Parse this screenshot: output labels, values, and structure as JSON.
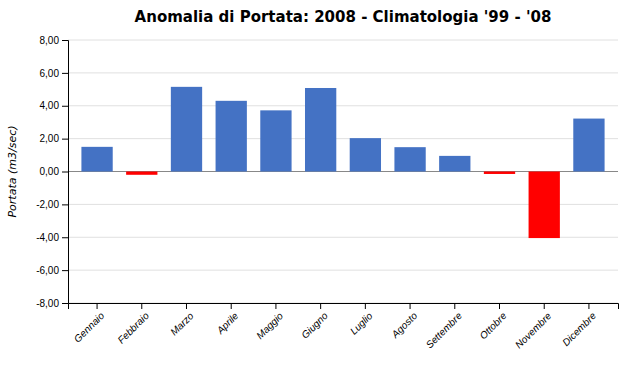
{
  "chart_data": {
    "type": "bar",
    "title": "Anomalia di Portata: 2008 - Climatologia  '99 - '08",
    "ylabel": "Portata (m3/sec)",
    "categories": [
      "Gennaio",
      "Febbraio",
      "Marzo",
      "Aprile",
      "Maggio",
      "Giugno",
      "Luglio",
      "Agosto",
      "Settembre",
      "Ottobre",
      "Novembre",
      "Dicembre"
    ],
    "values": [
      1.5,
      -0.2,
      5.15,
      4.3,
      3.72,
      5.08,
      2.03,
      1.48,
      0.95,
      -0.15,
      -4.05,
      3.22
    ],
    "colors": [
      "#4472C4",
      "#FF0000",
      "#4472C4",
      "#4472C4",
      "#4472C4",
      "#4472C4",
      "#4472C4",
      "#4472C4",
      "#4472C4",
      "#FF0000",
      "#FF0000",
      "#4472C4"
    ],
    "ylim": [
      -8.0,
      8.0
    ],
    "yticks": [
      {
        "value": -8.0,
        "label": "-8,00"
      },
      {
        "value": -6.0,
        "label": "-6,00"
      },
      {
        "value": -4.0,
        "label": "-4,00"
      },
      {
        "value": -2.0,
        "label": "-2,00"
      },
      {
        "value": 0.0,
        "label": "0,00"
      },
      {
        "value": 2.0,
        "label": "2,00"
      },
      {
        "value": 4.0,
        "label": "4,00"
      },
      {
        "value": 6.0,
        "label": "6,00"
      },
      {
        "value": 8.0,
        "label": "8,00"
      }
    ],
    "grid": true
  }
}
